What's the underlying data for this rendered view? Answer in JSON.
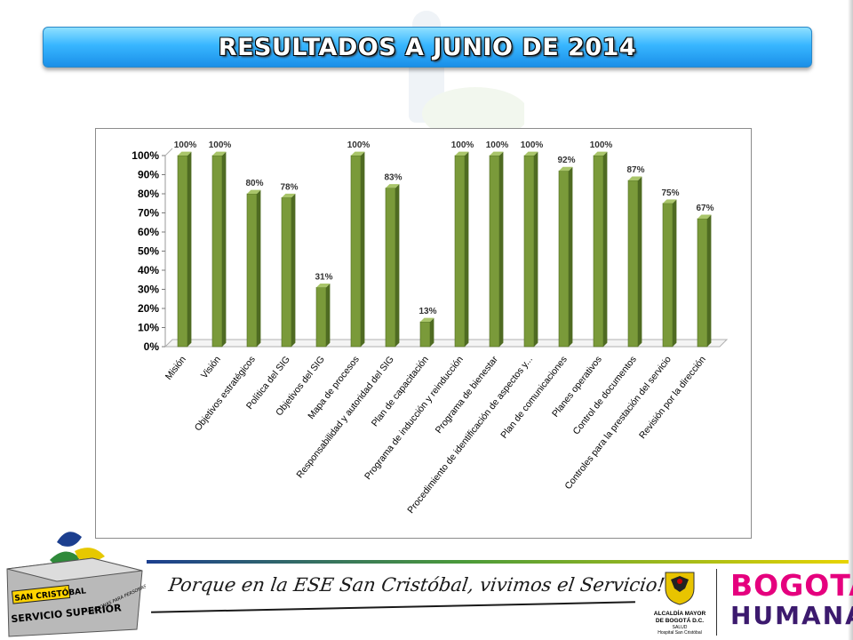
{
  "slide": {
    "title": "RESULTADOS A JUNIO DE 2014"
  },
  "footer": {
    "logo_line1": "SAN CRISTÓBAL",
    "logo_line2": "SERVICIO SUPERIOR",
    "logo_ribbon": "\"PERSONAS PARA PERSONAS\"",
    "slogan": "Porque en la ESE San Cristóbal, vivimos el Servicio!!!",
    "alcaldia_line1": "ALCALDÍA MAYOR",
    "alcaldia_line2": "DE BOGOTÁ D.C.",
    "alcaldia_line3": "SALUD",
    "alcaldia_line4": "Hospital San Cristóbal",
    "brand_top": "BOGOTÁ",
    "brand_bottom": "HUMANA"
  },
  "colors": {
    "bar": "#7a9a3a",
    "bar_light": "#a9c56a",
    "bar_dark": "#4f6b22",
    "title_bar": "#38b6ff",
    "brand_pink": "#e5007e",
    "brand_purple": "#3c1a6e"
  },
  "chart_data": {
    "type": "bar",
    "title": "",
    "xlabel": "",
    "ylabel": "",
    "ylim": [
      0,
      100
    ],
    "yticks": [
      "0%",
      "10%",
      "20%",
      "30%",
      "40%",
      "50%",
      "60%",
      "70%",
      "80%",
      "90%",
      "100%"
    ],
    "grid": false,
    "legend": "none",
    "categories": [
      "Misión",
      "Visión",
      "Objetivos estratégicos",
      "Política del SIG",
      "Objetivos del SIG",
      "Mapa de procesos",
      "Responsabilidad y autoridad del SIG",
      "Plan de capacitación",
      "Programa de inducción y reinducción",
      "Programa de bienestar",
      "Procedimiento de identificación de aspectos y...",
      "Plan de comunicaciones",
      "Planes operativos",
      "Control de documentos",
      "Controles para la prestación del servicio",
      "Revisión por la dirección"
    ],
    "values": [
      100,
      100,
      80,
      78,
      31,
      100,
      83,
      13,
      100,
      100,
      100,
      92,
      100,
      87,
      75,
      67
    ],
    "data_labels": [
      "100%",
      "100%",
      "80%",
      "78%",
      "31%",
      "100%",
      "83%",
      "13%",
      "100%",
      "100%",
      "100%",
      "92%",
      "100%",
      "87%",
      "75%",
      "67%"
    ]
  }
}
